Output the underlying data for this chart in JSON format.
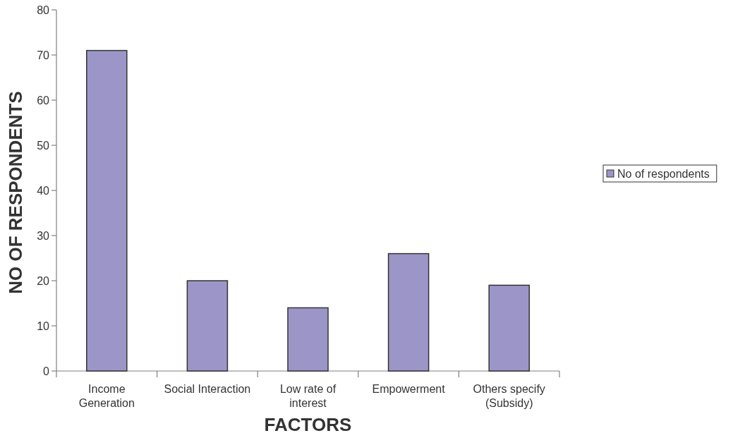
{
  "chart_data": {
    "type": "bar",
    "xlabel": "FACTORS",
    "ylabel": "NO OF RESPONDENTS",
    "categories": [
      "Income Generation",
      "Social Interaction",
      "Low rate of interest",
      "Empowerment",
      "Others specify (Subsidy)"
    ],
    "series": [
      {
        "name": "No of respondents",
        "color": "#9c96c8",
        "values": [
          71,
          20,
          14,
          26,
          19
        ]
      }
    ],
    "ylim": [
      0,
      80
    ],
    "yticks": [
      0,
      10,
      20,
      30,
      40,
      50,
      60,
      70,
      80
    ],
    "legend": "right"
  }
}
